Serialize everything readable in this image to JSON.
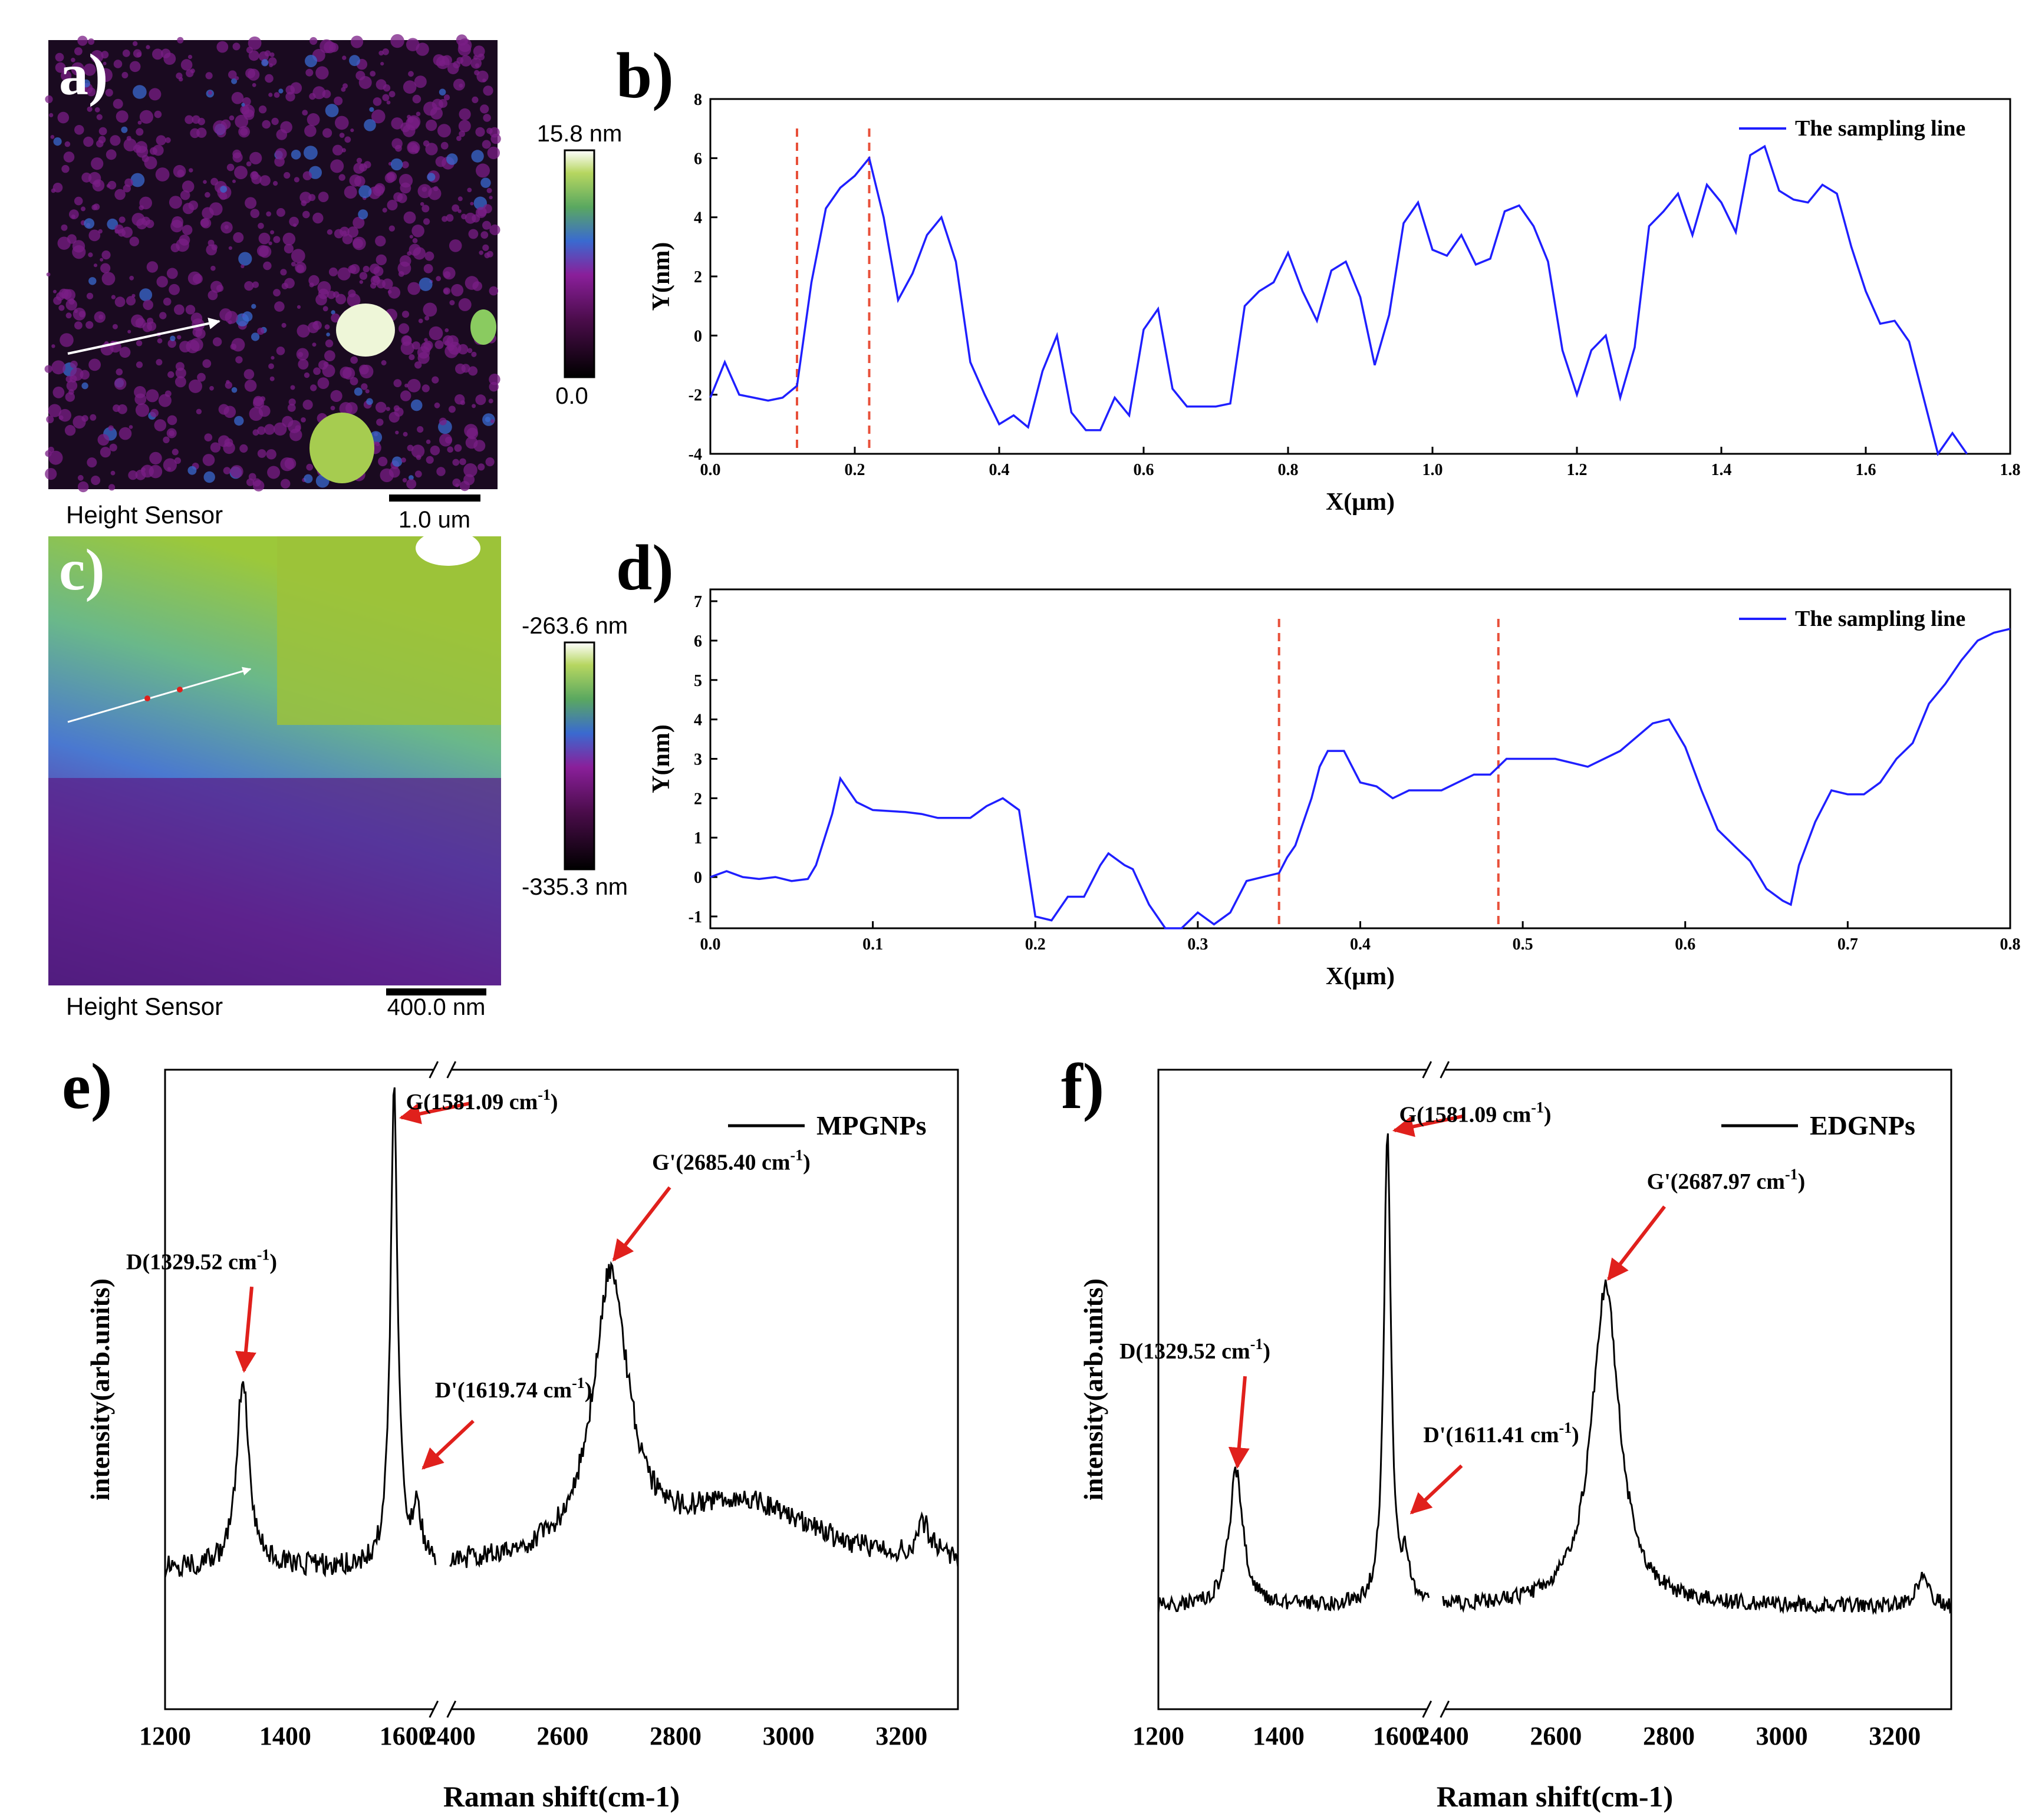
{
  "panels": {
    "a": {
      "letter": "a)",
      "caption": "Height Sensor",
      "scale_bar": "1.0 um",
      "colorbar_max": "15.8 nm",
      "colorbar_min": "0.0"
    },
    "b": {
      "letter": "b)"
    },
    "c": {
      "letter": "c)",
      "caption": "Height Sensor",
      "scale_bar": "400.0 nm",
      "colorbar_max": "-263.6 nm",
      "colorbar_min": "-335.3 nm"
    },
    "d": {
      "letter": "d)"
    },
    "e": {
      "letter": "e)"
    },
    "f": {
      "letter": "f)"
    }
  },
  "colors": {
    "profile_line": "#1f1fff",
    "marker_line": "#e8503a",
    "arrow": "#e0201c",
    "spectrum": "#000000"
  },
  "chart_data": [
    {
      "id": "b",
      "type": "line",
      "xlabel": "X(μm)",
      "ylabel": "Y(nm)",
      "xlim": [
        0.0,
        1.8
      ],
      "ylim": [
        -4,
        8
      ],
      "xticks": [
        "0.0",
        "0.2",
        "0.4",
        "0.6",
        "0.8",
        "1.0",
        "1.2",
        "1.4",
        "1.6",
        "1.8"
      ],
      "yticks": [
        "-4",
        "-2",
        "0",
        "2",
        "4",
        "6",
        "8"
      ],
      "legend": "The sampling line",
      "legend_position": "top-right",
      "markers_x": [
        0.12,
        0.22
      ],
      "series": [
        {
          "name": "The sampling line",
          "x": [
            0.0,
            0.02,
            0.04,
            0.08,
            0.1,
            0.12,
            0.14,
            0.16,
            0.18,
            0.2,
            0.22,
            0.24,
            0.26,
            0.28,
            0.3,
            0.32,
            0.34,
            0.36,
            0.38,
            0.4,
            0.42,
            0.44,
            0.46,
            0.48,
            0.5,
            0.52,
            0.54,
            0.56,
            0.58,
            0.6,
            0.62,
            0.64,
            0.66,
            0.68,
            0.7,
            0.72,
            0.74,
            0.76,
            0.78,
            0.8,
            0.82,
            0.84,
            0.86,
            0.88,
            0.9,
            0.92,
            0.94,
            0.96,
            0.98,
            1.0,
            1.02,
            1.04,
            1.06,
            1.08,
            1.1,
            1.12,
            1.14,
            1.16,
            1.18,
            1.2,
            1.22,
            1.24,
            1.26,
            1.28,
            1.3,
            1.32,
            1.34,
            1.36,
            1.38,
            1.4,
            1.42,
            1.44,
            1.46,
            1.48,
            1.5,
            1.52,
            1.54,
            1.56,
            1.58,
            1.6,
            1.62,
            1.64,
            1.66,
            1.68,
            1.7,
            1.72,
            1.74
          ],
          "y": [
            -2.1,
            -0.9,
            -2.0,
            -2.2,
            -2.1,
            -1.7,
            1.8,
            4.3,
            5.0,
            5.4,
            6.0,
            4.0,
            1.2,
            2.1,
            3.4,
            4.0,
            2.5,
            -0.9,
            -2.0,
            -3.0,
            -2.7,
            -3.1,
            -1.2,
            0.0,
            -2.6,
            -3.2,
            -3.2,
            -2.1,
            -2.7,
            0.2,
            0.9,
            -1.8,
            -2.4,
            -2.4,
            -2.4,
            -2.3,
            1.0,
            1.5,
            1.8,
            2.8,
            1.5,
            0.5,
            2.2,
            2.5,
            1.3,
            -1.0,
            0.7,
            3.8,
            4.5,
            2.9,
            2.7,
            3.4,
            2.4,
            2.6,
            4.2,
            4.4,
            3.7,
            2.5,
            -0.5,
            -2.0,
            -0.5,
            0.0,
            -2.1,
            -0.4,
            3.7,
            4.2,
            4.8,
            3.4,
            5.1,
            4.5,
            3.5,
            6.1,
            6.4,
            4.9,
            4.6,
            4.5,
            5.1,
            4.8,
            3.0,
            1.5,
            0.4,
            0.5,
            -0.2,
            -2.1,
            -4.0,
            -3.3,
            -4.0
          ]
        }
      ]
    },
    {
      "id": "d",
      "type": "line",
      "xlabel": "X(μm)",
      "ylabel": "Y(nm)",
      "xlim": [
        0.0,
        0.8
      ],
      "ylim": [
        -1.3,
        7.3
      ],
      "xticks": [
        "0.0",
        "0.1",
        "0.2",
        "0.3",
        "0.4",
        "0.5",
        "0.6",
        "0.7",
        "0.8"
      ],
      "yticks": [
        "-1",
        "0",
        "1",
        "2",
        "3",
        "4",
        "5",
        "6",
        "7"
      ],
      "legend": "The sampling line",
      "legend_position": "top-right",
      "markers_x": [
        0.35,
        0.485
      ],
      "series": [
        {
          "name": "The sampling line",
          "x": [
            0.0,
            0.01,
            0.02,
            0.03,
            0.04,
            0.05,
            0.06,
            0.065,
            0.075,
            0.08,
            0.09,
            0.1,
            0.12,
            0.13,
            0.14,
            0.16,
            0.17,
            0.18,
            0.19,
            0.2,
            0.21,
            0.22,
            0.23,
            0.24,
            0.245,
            0.255,
            0.26,
            0.27,
            0.28,
            0.29,
            0.3,
            0.31,
            0.32,
            0.33,
            0.34,
            0.35,
            0.355,
            0.36,
            0.37,
            0.375,
            0.38,
            0.39,
            0.4,
            0.41,
            0.42,
            0.43,
            0.44,
            0.45,
            0.46,
            0.47,
            0.48,
            0.49,
            0.5,
            0.52,
            0.54,
            0.56,
            0.58,
            0.59,
            0.6,
            0.61,
            0.62,
            0.63,
            0.64,
            0.65,
            0.66,
            0.665,
            0.67,
            0.68,
            0.69,
            0.7,
            0.71,
            0.72,
            0.73,
            0.74,
            0.75,
            0.76,
            0.77,
            0.78,
            0.79,
            0.8
          ],
          "y": [
            0.0,
            0.15,
            0.0,
            -0.05,
            0.0,
            -0.1,
            -0.05,
            0.3,
            1.6,
            2.5,
            1.9,
            1.7,
            1.65,
            1.6,
            1.5,
            1.5,
            1.8,
            2.0,
            1.7,
            -1.0,
            -1.1,
            -0.5,
            -0.5,
            0.3,
            0.6,
            0.3,
            0.2,
            -0.7,
            -1.3,
            -1.3,
            -0.9,
            -1.2,
            -0.9,
            -0.1,
            0.0,
            0.1,
            0.5,
            0.8,
            2.0,
            2.8,
            3.2,
            3.2,
            2.4,
            2.3,
            2.0,
            2.2,
            2.2,
            2.2,
            2.4,
            2.6,
            2.6,
            3.0,
            3.0,
            3.0,
            2.8,
            3.2,
            3.9,
            4.0,
            3.3,
            2.2,
            1.2,
            0.8,
            0.4,
            -0.3,
            -0.6,
            -0.7,
            0.3,
            1.4,
            2.2,
            2.1,
            2.1,
            2.4,
            3.0,
            3.4,
            4.4,
            4.9,
            5.5,
            6.0,
            6.2,
            6.3
          ]
        }
      ]
    },
    {
      "id": "e",
      "type": "line",
      "xlabel": "Raman shift(cm-1)",
      "ylabel": "intensity(arb.units)",
      "x_axis_break": [
        1650,
        2400
      ],
      "xlim_left": [
        1200,
        1650
      ],
      "xlim_right": [
        2400,
        3300
      ],
      "xticks": [
        "1200",
        "1400",
        "1600",
        "2400",
        "2600",
        "2800",
        "3000",
        "3200"
      ],
      "ylim": [
        0,
        1
      ],
      "legend": "MPGNPs",
      "legend_position": "top-right",
      "annotations": [
        {
          "label": "D",
          "value": "1329.52 cm",
          "x": 1329.52,
          "y": 0.55
        },
        {
          "label": "G",
          "value": "1581.09 cm",
          "x": 1581.09,
          "y": 0.92
        },
        {
          "label": "D'",
          "value": "1619.74 cm",
          "x": 1619.74,
          "y": 0.4
        },
        {
          "label": "G'",
          "value": "2685.40 cm",
          "x": 2685.4,
          "y": 0.71
        }
      ],
      "series": [
        {
          "name": "MPGNPs",
          "peaks": [
            [
              1329.52,
              0.3,
              12
            ],
            [
              1581.09,
              0.75,
              7
            ],
            [
              1619.74,
              0.09,
              8
            ],
            [
              2685.4,
              0.44,
              38
            ],
            [
              2920,
              0.1,
              150
            ],
            [
              3240,
              0.05,
              15
            ]
          ],
          "baseline": 0.22,
          "noise": 0.018
        }
      ]
    },
    {
      "id": "f",
      "type": "line",
      "xlabel": "Raman shift(cm-1)",
      "ylabel": "intensity(arb.units)",
      "x_axis_break": [
        1650,
        2400
      ],
      "xlim_left": [
        1200,
        1650
      ],
      "xlim_right": [
        2400,
        3300
      ],
      "xticks": [
        "1200",
        "1400",
        "1600",
        "2400",
        "2600",
        "2800",
        "3000",
        "3200"
      ],
      "ylim": [
        0,
        1
      ],
      "legend": "EDGNPs",
      "legend_position": "top-right",
      "annotations": [
        {
          "label": "D",
          "value": "1329.52 cm",
          "x": 1329.52,
          "y": 0.41
        },
        {
          "label": "G",
          "value": "1581.09 cm",
          "x": 1581.09,
          "y": 0.9
        },
        {
          "label": "D'",
          "value": "1611.41 cm",
          "x": 1611.41,
          "y": 0.33
        },
        {
          "label": "G'",
          "value": "2687.97 cm",
          "x": 2687.97,
          "y": 0.68
        }
      ],
      "series": [
        {
          "name": "EDGNPs",
          "peaks": [
            [
              1329.52,
              0.21,
              14
            ],
            [
              1581.09,
              0.74,
              7
            ],
            [
              1611.41,
              0.06,
              8
            ],
            [
              2687.97,
              0.5,
              30
            ],
            [
              3250,
              0.05,
              12
            ]
          ],
          "baseline": 0.16,
          "noise": 0.012
        }
      ]
    }
  ]
}
